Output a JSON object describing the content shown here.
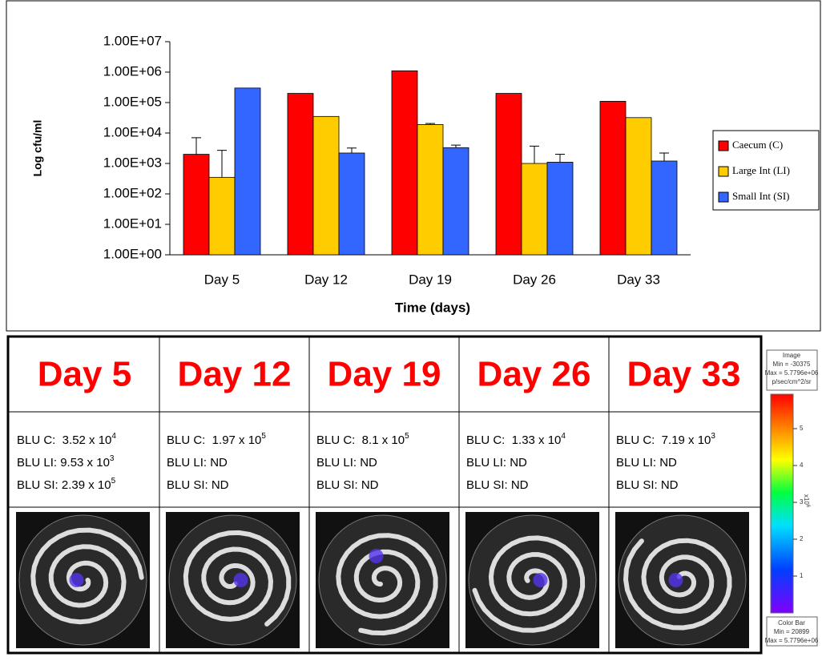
{
  "chart_data": {
    "type": "bar",
    "log_scale": true,
    "y_label": "Log cfu/ml",
    "x_label": "Time (days)",
    "categories": [
      "Day 5",
      "Day 12",
      "Day 19",
      "Day 26",
      "Day 33"
    ],
    "series": [
      {
        "name": "Caecum (C)",
        "color": "#ff0000",
        "values": [
          2000,
          200000,
          1100000,
          200000,
          110000
        ],
        "errors": [
          5000,
          null,
          null,
          null,
          null
        ]
      },
      {
        "name": "Large Int (LI)",
        "color": "#ffcc00",
        "values": [
          350,
          35000,
          19000,
          1000,
          32000
        ],
        "errors": [
          2350,
          null,
          1500,
          2700,
          null
        ]
      },
      {
        "name": "Small Int (SI)",
        "color": "#3366ff",
        "values": [
          300000,
          2200,
          3300,
          1100,
          1200
        ],
        "errors": [
          null,
          1000,
          700,
          900,
          1000
        ]
      }
    ],
    "ylim": [
      1,
      10000000
    ],
    "yticks": [
      {
        "value": 1,
        "label": "1.00E+00"
      },
      {
        "value": 10,
        "label": "1.00E+01"
      },
      {
        "value": 100,
        "label": "1.00E+02"
      },
      {
        "value": 1000,
        "label": "1.00E+03"
      },
      {
        "value": 10000,
        "label": "1.00E+04"
      },
      {
        "value": 100000,
        "label": "1.00E+05"
      },
      {
        "value": 1000000,
        "label": "1.00E+06"
      },
      {
        "value": 10000000,
        "label": "1.00E+07"
      }
    ],
    "legend": "right"
  },
  "panel": {
    "columns": [
      {
        "day": "Day 5",
        "lines": [
          {
            "text": "BLU C:  3.52 x 10",
            "sup": "4"
          },
          {
            "text": "BLU LI: 9.53 x 10",
            "sup": "3"
          },
          {
            "text": "BLU SI: 2.39 x 10",
            "sup": "5"
          }
        ]
      },
      {
        "day": "Day 12",
        "lines": [
          {
            "text": "BLU C:  1.97 x 10",
            "sup": "5"
          },
          {
            "text": "BLU LI: ND"
          },
          {
            "text": "BLU SI: ND"
          }
        ]
      },
      {
        "day": "Day 19",
        "lines": [
          {
            "text": "BLU C:  8.1 x 10",
            "sup": "5"
          },
          {
            "text": "BLU LI: ND"
          },
          {
            "text": "BLU SI: ND"
          }
        ]
      },
      {
        "day": "Day 26",
        "lines": [
          {
            "text": "BLU C:  1.33 x 10",
            "sup": "4"
          },
          {
            "text": "BLU LI: ND"
          },
          {
            "text": "BLU SI: ND"
          }
        ]
      },
      {
        "day": "Day 33",
        "lines": [
          {
            "text": "BLU C:  7.19 x 10",
            "sup": "3"
          },
          {
            "text": "BLU LI: ND"
          },
          {
            "text": "BLU SI: ND"
          }
        ]
      }
    ],
    "colorbar": {
      "header": [
        "Image",
        "Min = -30375",
        "Max = 5.7796e+06",
        "p/sec/cm^2/sr"
      ],
      "ticks": [
        "5",
        "4",
        "3",
        "2",
        "1"
      ],
      "unit": "x10",
      "unit_exp": "6",
      "footer": [
        "Color Bar",
        "Min = 20899",
        "Max = 5.7796e+06"
      ]
    }
  }
}
